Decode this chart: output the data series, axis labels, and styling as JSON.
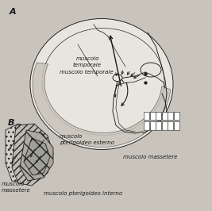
{
  "bg_color": "#c8c4bc",
  "line_color": "#1a1a1a",
  "skull_fill": "#dedad4",
  "skull_fill2": "#e8e4de",
  "label_A": "A",
  "label_B": "B",
  "font_size_labels": 5.0,
  "font_size_AB": 8,
  "label_muscolo_temporale_top": "muscolo\ntemporale",
  "label_muscolo_temporale_mid": "muscolo temporale",
  "label_muscolo_pterigoideoEsterno": "muscolo\npterigoideo esterno",
  "label_muscolo_massetere_right": "muscolo massetere",
  "label_muscolo_massetere_left": "muscolo\nmassetere",
  "label_muscolo_pterigoideoInterno": "muscolo pterigoideo interno"
}
